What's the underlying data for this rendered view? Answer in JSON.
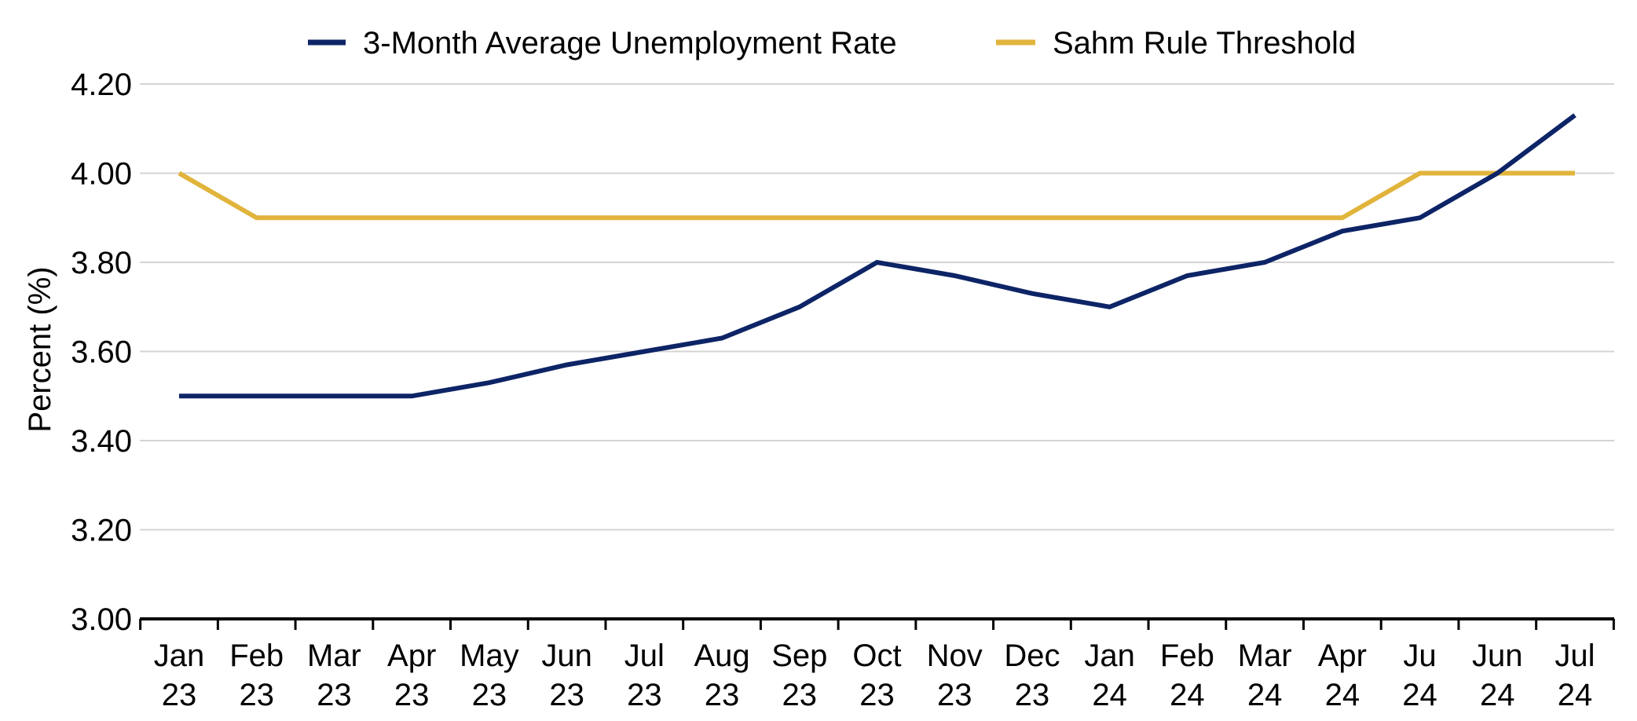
{
  "chart_data": {
    "type": "line",
    "title": "",
    "xlabel": "",
    "ylabel": "Percent (%)",
    "ylim": [
      3.0,
      4.2
    ],
    "y_ticks": [
      "3.00",
      "3.20",
      "3.40",
      "3.60",
      "3.80",
      "4.00",
      "4.20"
    ],
    "grid": true,
    "legend_position": "top-center",
    "categories": [
      [
        "Jan",
        "23"
      ],
      [
        "Feb",
        "23"
      ],
      [
        "Mar",
        "23"
      ],
      [
        "Apr",
        "23"
      ],
      [
        "May",
        "23"
      ],
      [
        "Jun",
        "23"
      ],
      [
        "Jul",
        "23"
      ],
      [
        "Aug",
        "23"
      ],
      [
        "Sep",
        "23"
      ],
      [
        "Oct",
        "23"
      ],
      [
        "Nov",
        "23"
      ],
      [
        "Dec",
        "23"
      ],
      [
        "Jan",
        "24"
      ],
      [
        "Feb",
        "24"
      ],
      [
        "Mar",
        "24"
      ],
      [
        "Apr",
        "24"
      ],
      [
        "Ju",
        "24"
      ],
      [
        "Jun",
        "24"
      ],
      [
        "Jul",
        "24"
      ]
    ],
    "series": [
      {
        "name": "3-Month Average Unemployment Rate",
        "color": "#0d2466",
        "values": [
          3.5,
          3.5,
          3.5,
          3.5,
          3.53,
          3.57,
          3.6,
          3.63,
          3.7,
          3.8,
          3.77,
          3.73,
          3.7,
          3.77,
          3.8,
          3.87,
          3.9,
          4.0,
          4.13
        ]
      },
      {
        "name": "Sahm Rule Threshold",
        "color": "#e1b43c",
        "values": [
          4.0,
          3.9,
          3.9,
          3.9,
          3.9,
          3.9,
          3.9,
          3.9,
          3.9,
          3.9,
          3.9,
          3.9,
          3.9,
          3.9,
          3.9,
          3.9,
          4.0,
          4.0,
          4.0
        ]
      }
    ]
  }
}
